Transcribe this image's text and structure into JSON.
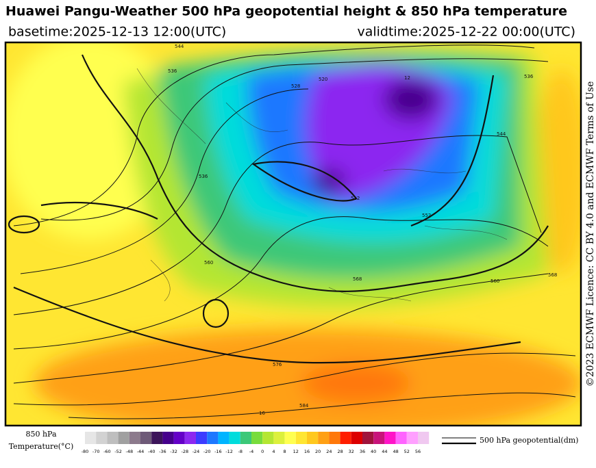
{
  "header": {
    "title": "Huawei Pangu-Weather 500 hPa geopotential height & 850 hPa temperature",
    "basetime": "basetime:2025-12-13 12:00(UTC)",
    "validtime": "validtime:2025-12-22 00:00(UTC)"
  },
  "side_text": "©2023 ECMWF Licence: CC BY 4.0 and ECMWF Terms of Use",
  "colorbar": {
    "label_line1": "850 hPa",
    "label_line2": "Temperature(°C)",
    "ticks": [
      -80,
      -70,
      -60,
      -52,
      -48,
      -44,
      -40,
      -36,
      -32,
      -28,
      -24,
      -20,
      -16,
      -12,
      -8,
      -4,
      0,
      4,
      8,
      12,
      16,
      20,
      24,
      28,
      32,
      36,
      40,
      44,
      48,
      52,
      56
    ],
    "colors": [
      "#e6e6e6",
      "#d2d2d2",
      "#bebebe",
      "#a0a0a0",
      "#8c7a8c",
      "#6e5a78",
      "#3c145a",
      "#46008c",
      "#6400c8",
      "#8c28f0",
      "#3c3cff",
      "#1e78ff",
      "#00b4ff",
      "#00dcdc",
      "#3cc878",
      "#78dc3c",
      "#b4e632",
      "#dcf03c",
      "#ffff50",
      "#ffe632",
      "#ffc81e",
      "#ffa014",
      "#ff780a",
      "#ff1e00",
      "#dc0000",
      "#a0143c",
      "#c8147a",
      "#ff14c8",
      "#ff64ff",
      "#ffa0ff",
      "#f0c8f0"
    ]
  },
  "legend": {
    "label": "500 hPa geopotential(dm)"
  },
  "contour_labels": [
    "544",
    "536",
    "528",
    "520",
    "512",
    "536",
    "552",
    "560",
    "568",
    "576",
    "584",
    "544",
    "560",
    "568",
    "536",
    "16",
    "12"
  ]
}
